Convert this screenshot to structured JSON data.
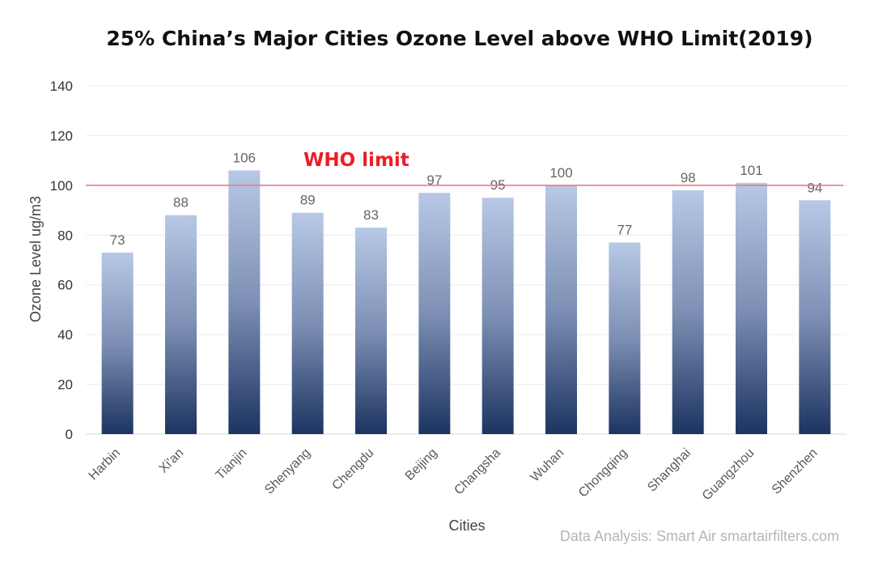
{
  "chart_data": {
    "type": "bar",
    "title": "25% China’s Major Cities Ozone Level above WHO Limit(2019)",
    "xlabel": "Cities",
    "ylabel": "Ozone Level ug/m3",
    "categories": [
      "Harbin",
      "Xi'an",
      "Tianjin",
      "Shenyang",
      "Chengdu",
      "Beijing",
      "Changsha",
      "Wuhan",
      "Chongqing",
      "Shanghai",
      "Guangzhou",
      "Shenzhen"
    ],
    "values": [
      73,
      88,
      106,
      89,
      83,
      97,
      95,
      100,
      77,
      98,
      101,
      94
    ],
    "ylim": [
      0,
      140
    ],
    "yticks": [
      0,
      20,
      40,
      60,
      80,
      100,
      120,
      140
    ],
    "grid": true,
    "legend": "none",
    "reference_line": {
      "label": "WHO limit",
      "value": 100,
      "color": "#ee1c25"
    },
    "bar_gradient": {
      "top": "#b8c8e6",
      "bottom": "#1c3461"
    },
    "source": "Data Analysis: Smart Air smartairfilters.com"
  }
}
